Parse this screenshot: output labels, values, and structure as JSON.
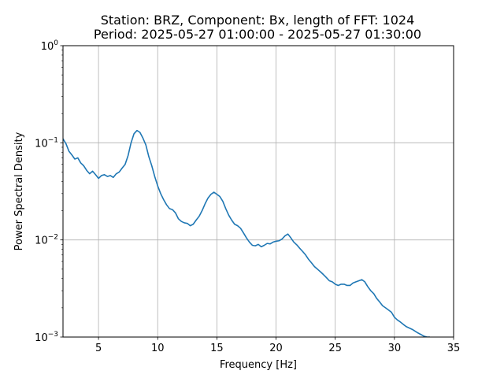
{
  "chart_data": {
    "type": "line",
    "title": "Station: BRZ, Component: Bx, length of FFT: 1024",
    "subtitle": "Period: 2025-05-27 01:00:00 - 2025-05-27 01:30:00",
    "xlabel": "Frequency [Hz]",
    "ylabel": "Power Spectral Density",
    "xlim": [
      2,
      35
    ],
    "ylim": [
      0.001,
      1
    ],
    "yscale": "log",
    "grid": true,
    "x_ticks": [
      {
        "value": 5,
        "label": "5"
      },
      {
        "value": 10,
        "label": "10"
      },
      {
        "value": 15,
        "label": "15"
      },
      {
        "value": 20,
        "label": "20"
      },
      {
        "value": 25,
        "label": "25"
      },
      {
        "value": 30,
        "label": "30"
      },
      {
        "value": 35,
        "label": "35"
      }
    ],
    "y_ticks": [
      {
        "value": 0.001,
        "base": "10",
        "exp": "−3"
      },
      {
        "value": 0.01,
        "base": "10",
        "exp": "−2"
      },
      {
        "value": 0.1,
        "base": "10",
        "exp": "−1"
      },
      {
        "value": 1,
        "base": "10",
        "exp": "0"
      }
    ],
    "line_color": "#1f77b4",
    "series": [
      {
        "x": [
          2.0,
          2.25,
          2.5,
          2.75,
          3.0,
          3.25,
          3.5,
          3.75,
          4.0,
          4.25,
          4.5,
          4.75,
          5.0,
          5.25,
          5.5,
          5.75,
          6.0,
          6.25,
          6.5,
          6.75,
          7.0,
          7.25,
          7.5,
          7.75,
          8.0,
          8.25,
          8.5,
          8.75,
          9.0,
          9.25,
          9.5,
          9.75,
          10.0,
          10.25,
          10.5,
          10.75,
          11.0,
          11.25,
          11.5,
          11.75,
          12.0,
          12.25,
          12.5,
          12.75,
          13.0,
          13.25,
          13.5,
          13.75,
          14.0,
          14.25,
          14.5,
          14.75,
          15.0,
          15.25,
          15.5,
          15.75,
          16.0,
          16.25,
          16.5,
          16.75,
          17.0,
          17.25,
          17.5,
          17.75,
          18.0,
          18.25,
          18.5,
          18.75,
          19.0,
          19.25,
          19.5,
          19.75,
          20.0,
          20.25,
          20.5,
          20.75,
          21.0,
          21.25,
          21.5,
          21.75,
          22.0,
          22.25,
          22.5,
          22.75,
          23.0,
          23.25,
          23.5,
          23.75,
          24.0,
          24.25,
          24.5,
          24.75,
          25.0,
          25.25,
          25.5,
          25.75,
          26.0,
          26.25,
          26.5,
          26.75,
          27.0,
          27.25,
          27.5,
          27.75,
          28.0,
          28.25,
          28.5,
          28.75,
          29.0,
          29.25,
          29.5,
          29.75,
          30.0,
          30.25,
          30.5,
          30.75,
          31.0,
          31.25,
          31.5,
          31.75,
          32.0,
          32.25,
          32.5,
          32.75,
          33.0
        ],
        "y": [
          0.11,
          0.098,
          0.082,
          0.075,
          0.068,
          0.07,
          0.062,
          0.058,
          0.052,
          0.048,
          0.051,
          0.047,
          0.043,
          0.046,
          0.047,
          0.045,
          0.046,
          0.044,
          0.048,
          0.05,
          0.055,
          0.06,
          0.074,
          0.1,
          0.124,
          0.134,
          0.128,
          0.112,
          0.095,
          0.072,
          0.058,
          0.045,
          0.036,
          0.03,
          0.026,
          0.023,
          0.021,
          0.0205,
          0.019,
          0.0165,
          0.0155,
          0.015,
          0.0148,
          0.014,
          0.0145,
          0.016,
          0.0175,
          0.02,
          0.0235,
          0.027,
          0.0295,
          0.031,
          0.0295,
          0.028,
          0.025,
          0.021,
          0.018,
          0.016,
          0.0145,
          0.014,
          0.0132,
          0.0118,
          0.0105,
          0.0095,
          0.0088,
          0.0087,
          0.009,
          0.0085,
          0.0088,
          0.0092,
          0.0091,
          0.0095,
          0.0097,
          0.0098,
          0.0102,
          0.011,
          0.0115,
          0.0105,
          0.0095,
          0.0089,
          0.0082,
          0.0076,
          0.007,
          0.0063,
          0.0058,
          0.0053,
          0.005,
          0.0047,
          0.0044,
          0.0041,
          0.0038,
          0.0037,
          0.0035,
          0.0034,
          0.0035,
          0.0035,
          0.0034,
          0.0034,
          0.0036,
          0.0037,
          0.0038,
          0.0039,
          0.0037,
          0.0033,
          0.003,
          0.0028,
          0.0025,
          0.0023,
          0.0021,
          0.002,
          0.0019,
          0.0018,
          0.0016,
          0.0015,
          0.00143,
          0.00135,
          0.00128,
          0.00124,
          0.0012,
          0.00115,
          0.0011,
          0.00106,
          0.00102,
          0.001,
          0.001
        ]
      }
    ]
  }
}
